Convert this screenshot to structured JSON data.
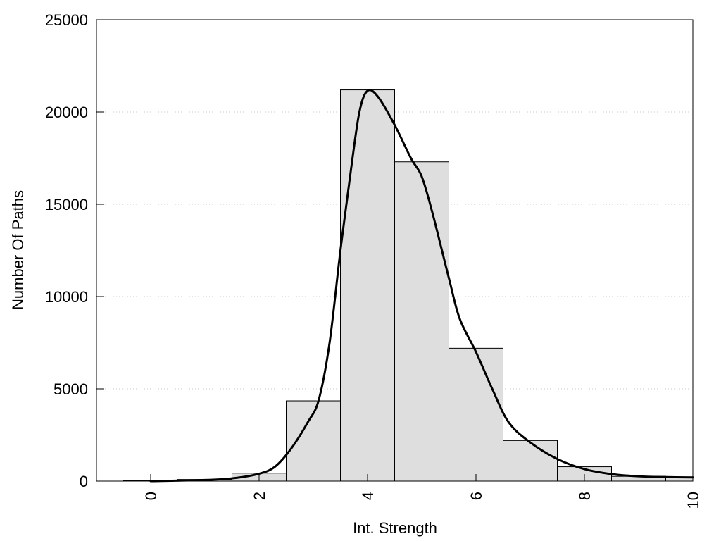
{
  "chart_data": {
    "type": "bar",
    "xlabel": "Int. Strength",
    "ylabel": "Number Of Paths",
    "xlim": [
      -1,
      10
    ],
    "ylim": [
      0,
      25000
    ],
    "x_ticks": [
      0,
      2,
      4,
      6,
      8,
      10
    ],
    "y_ticks": [
      0,
      5000,
      10000,
      15000,
      20000,
      25000
    ],
    "grid": "horizontal-dotted",
    "bar_width": 1,
    "bins": [
      {
        "center": 0,
        "value": 20
      },
      {
        "center": 1,
        "value": 90
      },
      {
        "center": 2,
        "value": 430
      },
      {
        "center": 3,
        "value": 4350
      },
      {
        "center": 4,
        "value": 21200
      },
      {
        "center": 5,
        "value": 17300
      },
      {
        "center": 6,
        "value": 7200
      },
      {
        "center": 7,
        "value": 2200
      },
      {
        "center": 8,
        "value": 780
      },
      {
        "center": 9,
        "value": 260
      },
      {
        "center": 10,
        "value": 200
      }
    ],
    "curve": [
      {
        "x": 0,
        "y": 0
      },
      {
        "x": 1,
        "y": 60
      },
      {
        "x": 1.5,
        "y": 150
      },
      {
        "x": 2,
        "y": 400
      },
      {
        "x": 2.3,
        "y": 800
      },
      {
        "x": 2.6,
        "y": 1800
      },
      {
        "x": 2.9,
        "y": 3200
      },
      {
        "x": 3.1,
        "y": 4400
      },
      {
        "x": 3.3,
        "y": 7500
      },
      {
        "x": 3.5,
        "y": 12500
      },
      {
        "x": 3.7,
        "y": 17000
      },
      {
        "x": 3.85,
        "y": 20000
      },
      {
        "x": 4.0,
        "y": 21150
      },
      {
        "x": 4.2,
        "y": 20800
      },
      {
        "x": 4.5,
        "y": 19300
      },
      {
        "x": 4.8,
        "y": 17500
      },
      {
        "x": 5.0,
        "y": 16500
      },
      {
        "x": 5.2,
        "y": 14500
      },
      {
        "x": 5.5,
        "y": 11000
      },
      {
        "x": 5.7,
        "y": 8800
      },
      {
        "x": 6.0,
        "y": 7000
      },
      {
        "x": 6.3,
        "y": 5000
      },
      {
        "x": 6.6,
        "y": 3200
      },
      {
        "x": 7.0,
        "y": 2100
      },
      {
        "x": 7.5,
        "y": 1200
      },
      {
        "x": 8.0,
        "y": 650
      },
      {
        "x": 8.5,
        "y": 380
      },
      {
        "x": 9.0,
        "y": 260
      },
      {
        "x": 9.5,
        "y": 220
      },
      {
        "x": 10.0,
        "y": 200
      }
    ],
    "colors": {
      "bar_fill": "#dedede",
      "bar_stroke": "#000000",
      "curve": "#000000",
      "grid": "#c8c8c8"
    }
  }
}
